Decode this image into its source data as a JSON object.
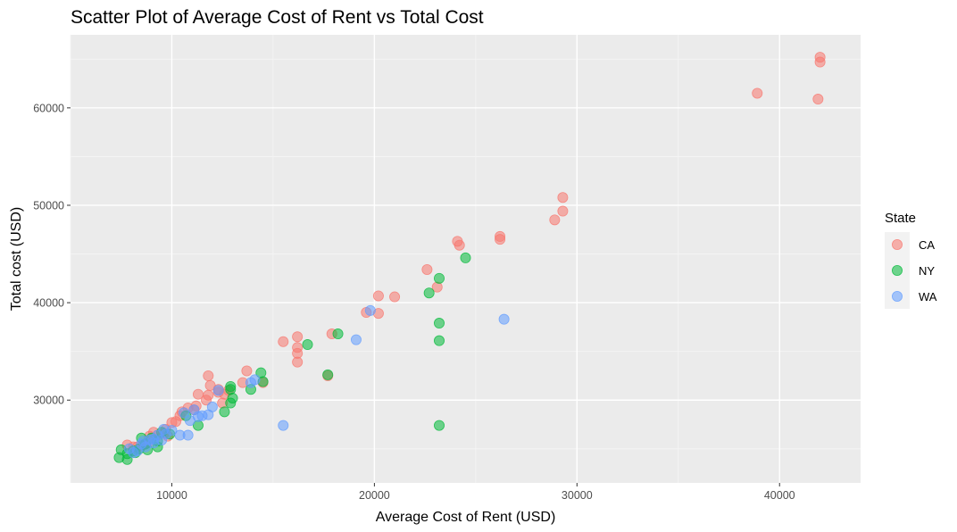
{
  "chart_data": {
    "type": "scatter",
    "title": "Scatter Plot of Average Cost of Rent vs Total Cost",
    "xlabel": "Average Cost of Rent (USD)",
    "ylabel": "Total cost (USD)",
    "xlim": [
      5000,
      44000
    ],
    "ylim": [
      21500,
      67500
    ],
    "x_ticks": [
      10000,
      20000,
      30000,
      40000
    ],
    "y_ticks": [
      30000,
      40000,
      50000,
      60000
    ],
    "x_tick_labels": [
      "10000",
      "20000",
      "30000",
      "40000"
    ],
    "y_tick_labels": [
      "30000",
      "40000",
      "50000",
      "60000"
    ],
    "grid": true,
    "legend": {
      "title": "State",
      "position": "right"
    },
    "series": [
      {
        "name": "CA",
        "color": "#F8766D",
        "points": [
          [
            42000,
            65200
          ],
          [
            42000,
            64700
          ],
          [
            41900,
            60900
          ],
          [
            38900,
            61500
          ],
          [
            29300,
            50800
          ],
          [
            29300,
            49400
          ],
          [
            28900,
            48500
          ],
          [
            26200,
            46800
          ],
          [
            26200,
            46500
          ],
          [
            24100,
            46300
          ],
          [
            24200,
            45900
          ],
          [
            22600,
            43400
          ],
          [
            23100,
            41600
          ],
          [
            20200,
            40700
          ],
          [
            21000,
            40600
          ],
          [
            20200,
            38900
          ],
          [
            19600,
            39000
          ],
          [
            16200,
            36500
          ],
          [
            15500,
            36000
          ],
          [
            16200,
            35400
          ],
          [
            16200,
            34800
          ],
          [
            16200,
            33900
          ],
          [
            17900,
            36800
          ],
          [
            17700,
            32500
          ],
          [
            13700,
            33000
          ],
          [
            14500,
            31800
          ],
          [
            13500,
            31800
          ],
          [
            11800,
            32500
          ],
          [
            11900,
            31500
          ],
          [
            12300,
            31100
          ],
          [
            12800,
            31000
          ],
          [
            12600,
            30600
          ],
          [
            11800,
            30500
          ],
          [
            11300,
            30600
          ],
          [
            12300,
            30800
          ],
          [
            11700,
            30000
          ],
          [
            12500,
            29700
          ],
          [
            11200,
            29400
          ],
          [
            11100,
            29000
          ],
          [
            10800,
            29200
          ],
          [
            10500,
            28800
          ],
          [
            10400,
            28400
          ],
          [
            10200,
            27800
          ],
          [
            10000,
            27700
          ],
          [
            9700,
            27000
          ],
          [
            9600,
            26600
          ],
          [
            9300,
            26400
          ],
          [
            9100,
            26700
          ],
          [
            8900,
            26300
          ],
          [
            8800,
            25600
          ],
          [
            8600,
            25400
          ],
          [
            8300,
            25200
          ],
          [
            8100,
            25200
          ],
          [
            7800,
            25400
          ],
          [
            9800,
            26300
          ]
        ]
      },
      {
        "name": "NY",
        "color": "#00BA38",
        "points": [
          [
            24500,
            44600
          ],
          [
            23200,
            42500
          ],
          [
            22700,
            41000
          ],
          [
            23200,
            37900
          ],
          [
            23200,
            36100
          ],
          [
            23200,
            27400
          ],
          [
            18200,
            36800
          ],
          [
            16700,
            35700
          ],
          [
            17700,
            32600
          ],
          [
            14400,
            32800
          ],
          [
            14500,
            31900
          ],
          [
            13900,
            31100
          ],
          [
            12900,
            31400
          ],
          [
            12900,
            31100
          ],
          [
            13000,
            30200
          ],
          [
            12900,
            29700
          ],
          [
            12600,
            28800
          ],
          [
            11300,
            27400
          ],
          [
            10700,
            28400
          ],
          [
            9900,
            26500
          ],
          [
            9500,
            26700
          ],
          [
            9300,
            25800
          ],
          [
            9300,
            25200
          ],
          [
            9000,
            26100
          ],
          [
            8500,
            26100
          ],
          [
            8700,
            25500
          ],
          [
            8400,
            25000
          ],
          [
            8100,
            24800
          ],
          [
            7800,
            24500
          ],
          [
            7500,
            24900
          ],
          [
            7400,
            24100
          ],
          [
            7800,
            23900
          ],
          [
            8800,
            24900
          ],
          [
            8200,
            24600
          ]
        ]
      },
      {
        "name": "WA",
        "color": "#619CFF",
        "points": [
          [
            26400,
            38300
          ],
          [
            19800,
            39200
          ],
          [
            19100,
            36200
          ],
          [
            15500,
            27400
          ],
          [
            14100,
            32100
          ],
          [
            13900,
            31800
          ],
          [
            12300,
            31000
          ],
          [
            12000,
            29300
          ],
          [
            11800,
            28500
          ],
          [
            11500,
            28400
          ],
          [
            11300,
            28300
          ],
          [
            11100,
            29000
          ],
          [
            10900,
            27900
          ],
          [
            10800,
            26400
          ],
          [
            10600,
            28700
          ],
          [
            10400,
            26400
          ],
          [
            10000,
            26900
          ],
          [
            9700,
            26500
          ],
          [
            9500,
            25900
          ],
          [
            9300,
            26400
          ],
          [
            9100,
            26000
          ],
          [
            9100,
            25600
          ],
          [
            8900,
            25900
          ],
          [
            8700,
            25200
          ],
          [
            8500,
            25500
          ],
          [
            8300,
            24800
          ],
          [
            8100,
            24600
          ],
          [
            7900,
            25000
          ],
          [
            8600,
            25800
          ],
          [
            9600,
            27000
          ]
        ]
      }
    ]
  }
}
